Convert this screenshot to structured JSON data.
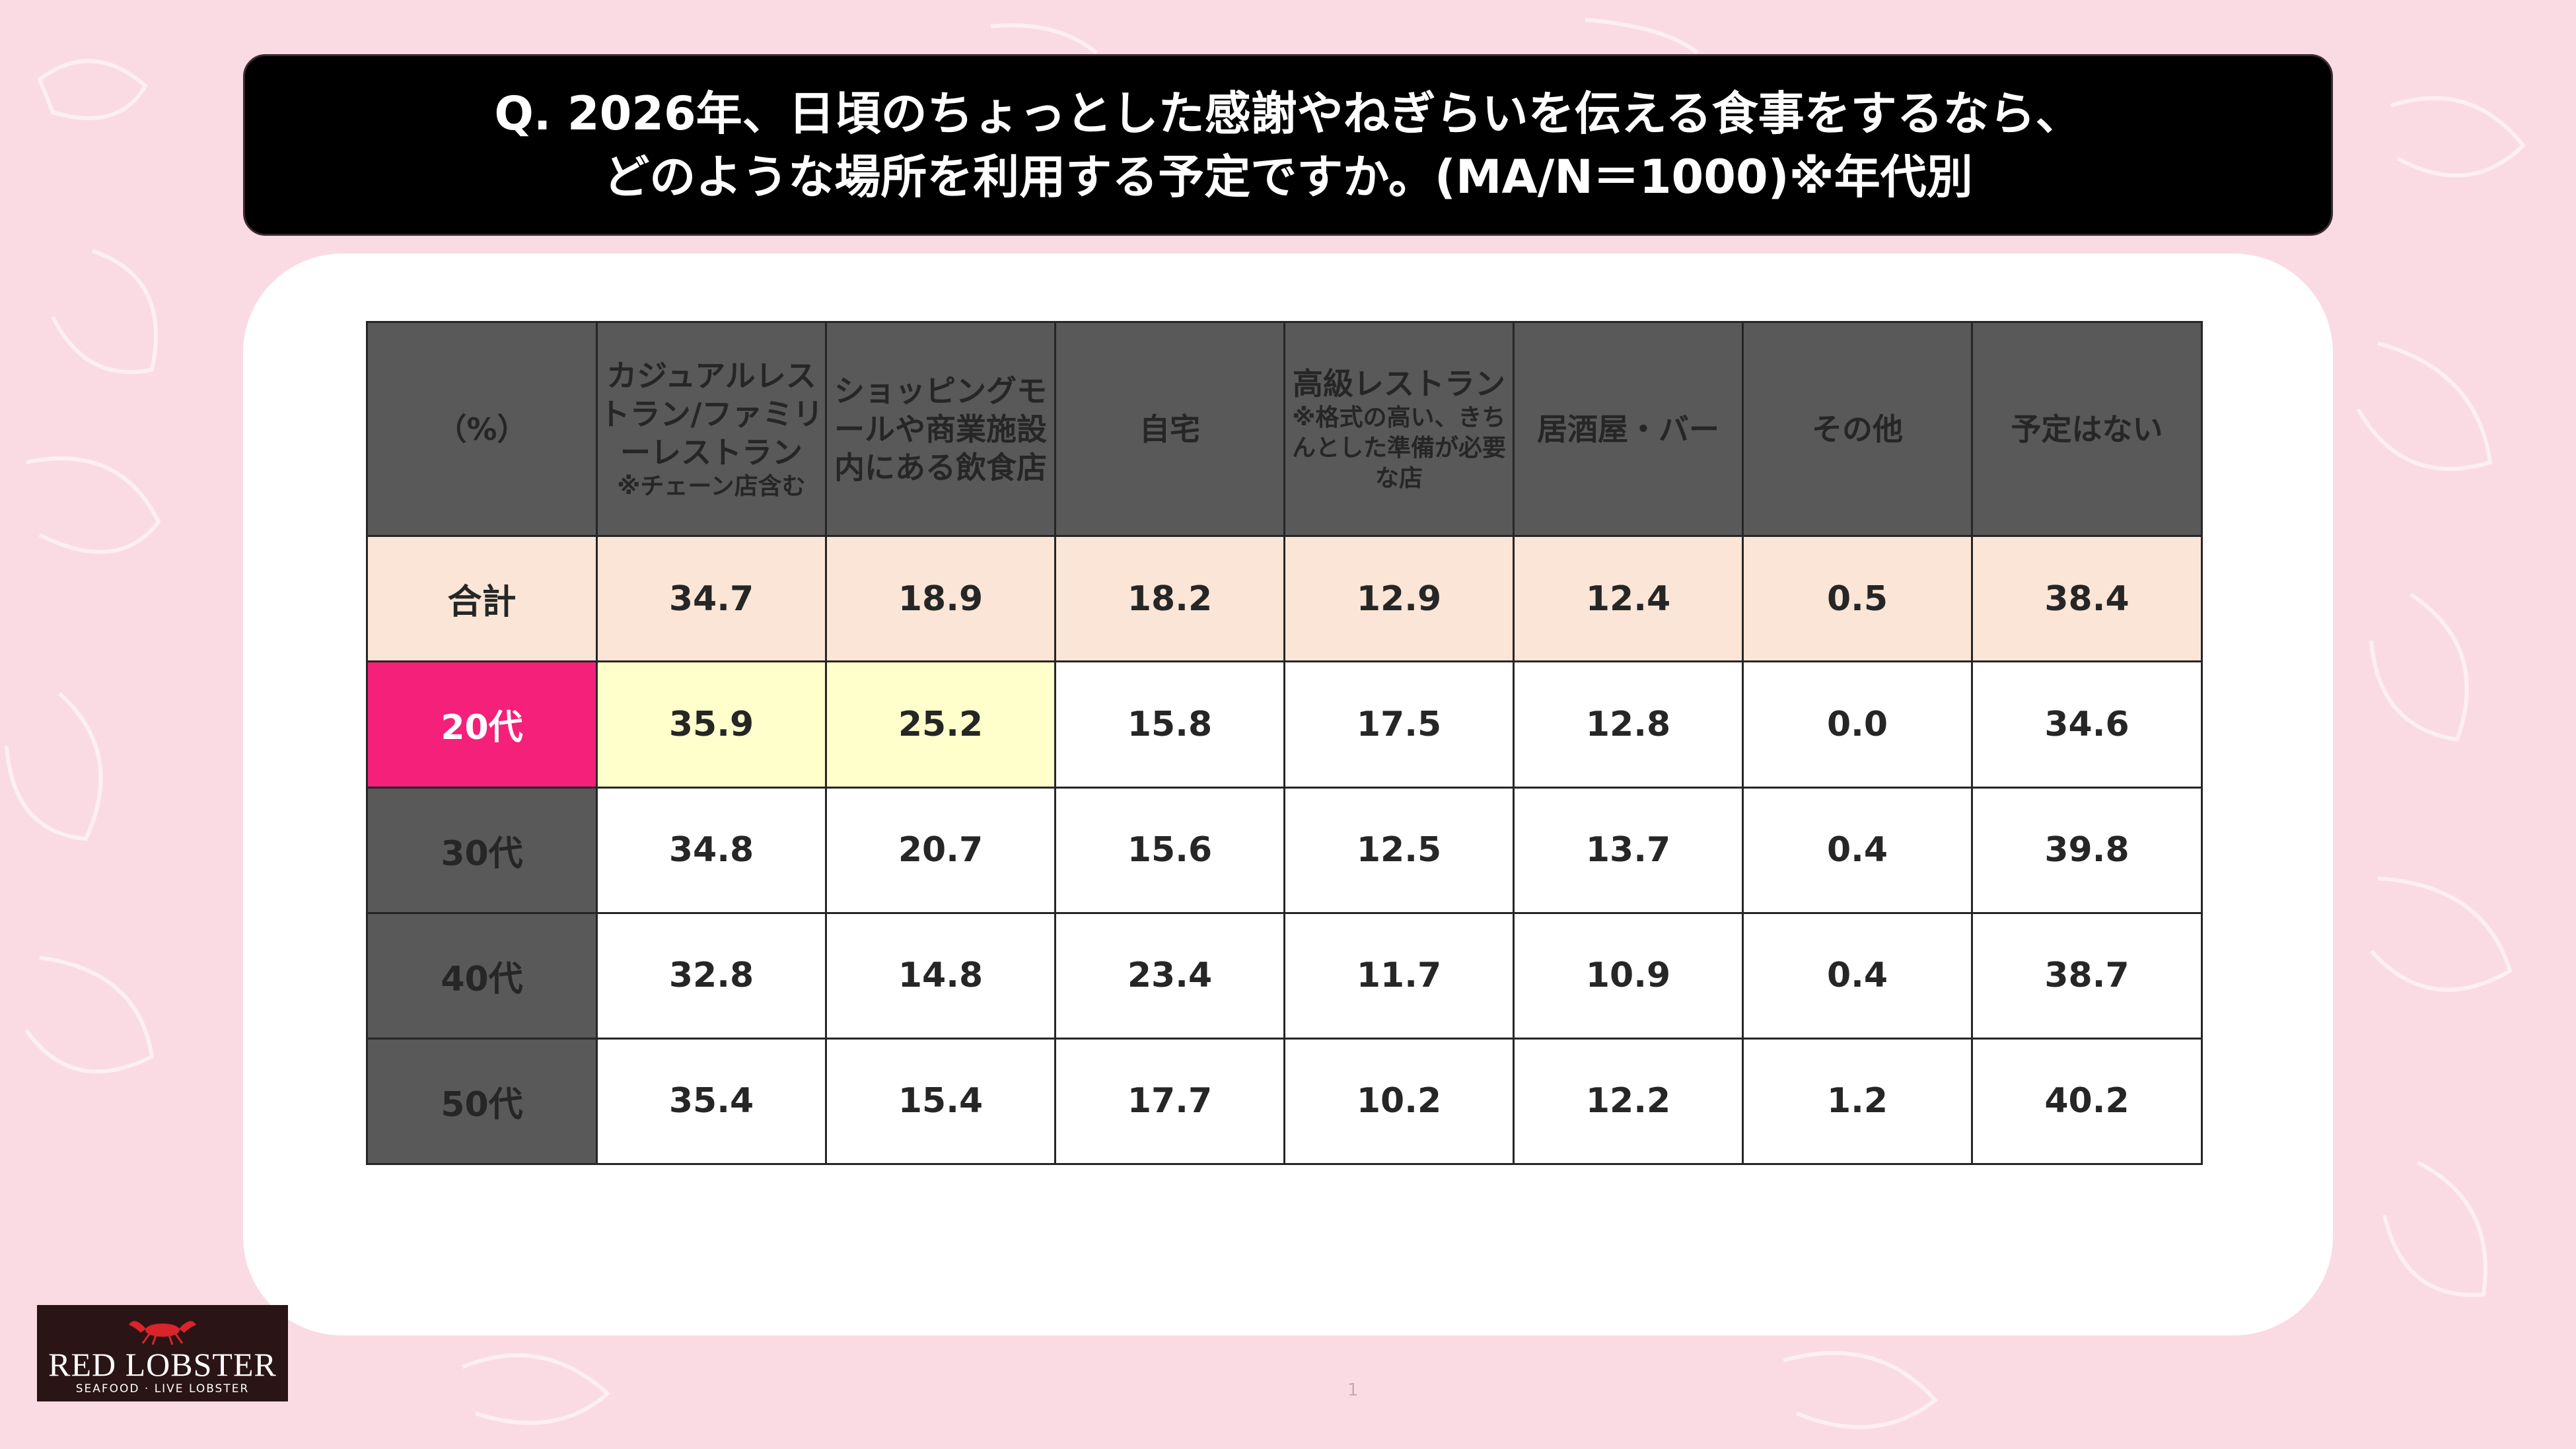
{
  "title": {
    "line1": "Q. 2026年、日頃のちょっとした感謝やねぎらいを伝える食事をするなら、",
    "line2": "どのような場所を利用する予定ですか。(MA/N＝1000)※年代別"
  },
  "chart_data": {
    "type": "table",
    "unit_label": "（%）",
    "columns": [
      {
        "label": "カジュアルレストラン/ファミリーレストラン",
        "note": "※チェーン店含む"
      },
      {
        "label": "ショッピングモールや商業施設内にある飲食店",
        "note": ""
      },
      {
        "label": "自宅",
        "note": ""
      },
      {
        "label": "高級レストラン",
        "note": "※格式の高い、きちんとした準備が必要な店"
      },
      {
        "label": "居酒屋・バー",
        "note": ""
      },
      {
        "label": "その他",
        "note": ""
      },
      {
        "label": "予定はない",
        "note": ""
      }
    ],
    "rows": [
      {
        "label": "合計",
        "values": [
          "34.7",
          "18.9",
          "18.2",
          "12.9",
          "12.4",
          "0.5",
          "38.4"
        ]
      },
      {
        "label": "20代",
        "values": [
          "35.9",
          "25.2",
          "15.8",
          "17.5",
          "12.8",
          "0.0",
          "34.6"
        ]
      },
      {
        "label": "30代",
        "values": [
          "34.8",
          "20.7",
          "15.6",
          "12.5",
          "13.7",
          "0.4",
          "39.8"
        ]
      },
      {
        "label": "40代",
        "values": [
          "32.8",
          "14.8",
          "23.4",
          "11.7",
          "10.9",
          "0.4",
          "38.7"
        ]
      },
      {
        "label": "50代",
        "values": [
          "35.4",
          "15.4",
          "17.7",
          "10.2",
          "12.2",
          "1.2",
          "40.2"
        ]
      }
    ],
    "highlighted_row": "20代",
    "highlighted_cells": [
      {
        "row": "20代",
        "column": 0
      },
      {
        "row": "20代",
        "column": 1
      }
    ]
  },
  "logo": {
    "name": "RED LOBSTER",
    "tagline": "SEAFOOD · LIVE LOBSTER",
    "icon": "lobster-icon"
  },
  "page_number": "1",
  "colors": {
    "background": "#fadbe4",
    "header_cell": "#595959",
    "total_row": "#fbe5d6",
    "highlight_row_label": "#f5207a",
    "highlight_cell": "#ffffcc"
  }
}
